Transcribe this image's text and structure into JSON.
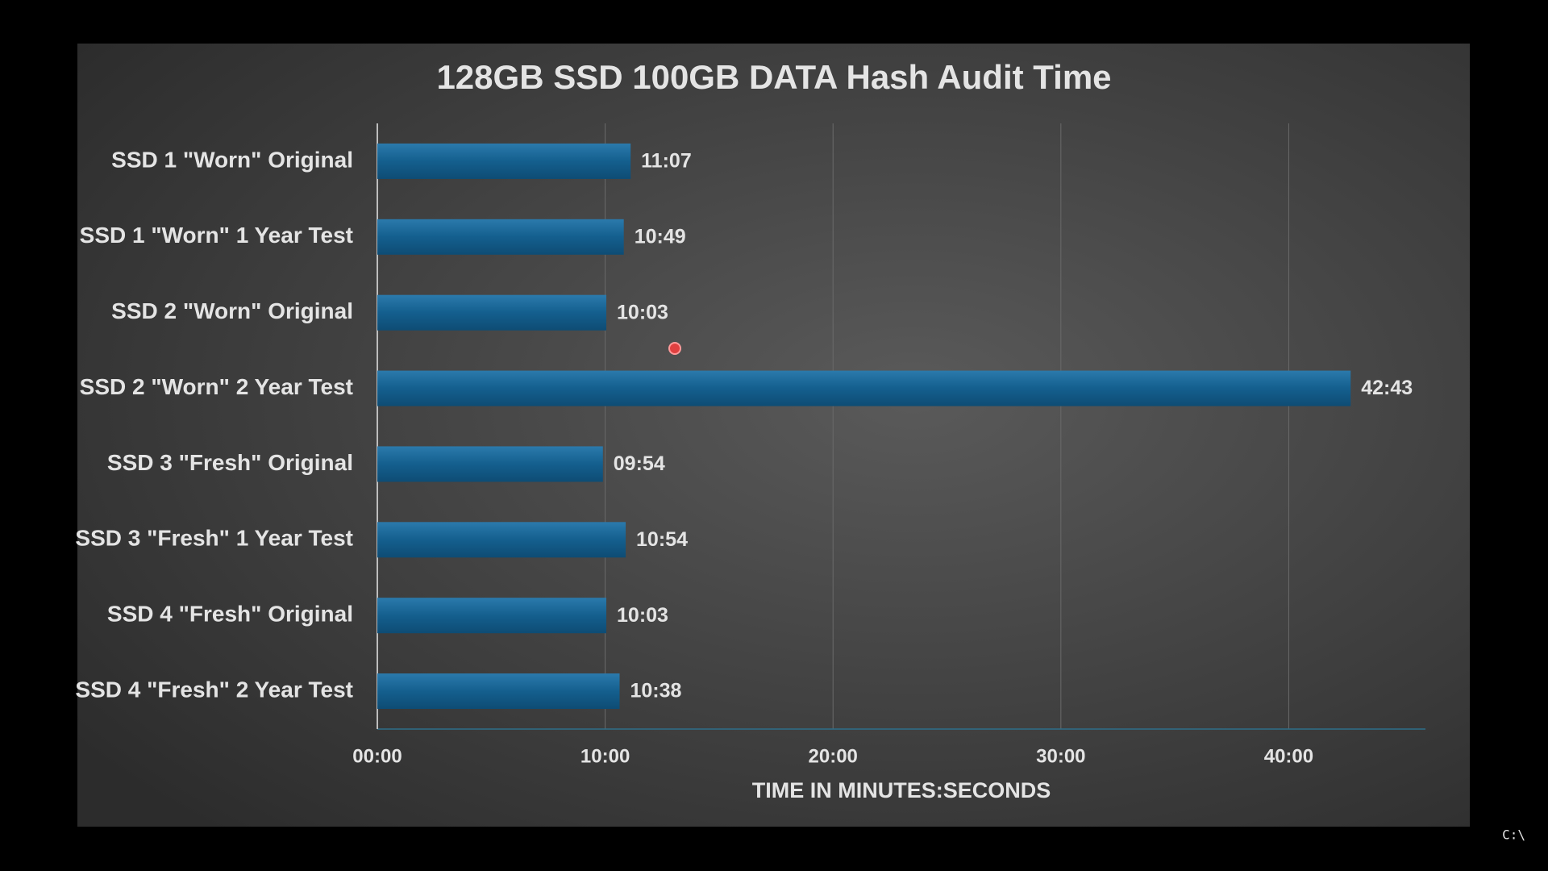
{
  "chart_data": {
    "type": "bar",
    "orientation": "horizontal",
    "title": "128GB SSD 100GB DATA Hash Audit Time",
    "x_label": "TIME IN MINUTES:SECONDS",
    "categories": [
      "SSD 1 \"Worn\" Original",
      "SSD 1 \"Worn\" 1 Year Test",
      "SSD 2 \"Worn\" Original",
      "SSD 2 \"Worn\" 2 Year Test",
      "SSD 3 \"Fresh\" Original",
      "SSD 3 \"Fresh\" 1 Year Test",
      "SSD 4 \"Fresh\" Original",
      "SSD 4 \"Fresh\" 2 Year Test"
    ],
    "values": [
      11.1167,
      10.8167,
      10.05,
      42.7167,
      9.9,
      10.9,
      10.05,
      10.6333
    ],
    "value_labels": [
      "11:07",
      "10:49",
      "10:03",
      "42:43",
      "09:54",
      "10:54",
      "10:03",
      "10:38"
    ],
    "color": "#145f8e",
    "xlim": [
      0,
      46
    ],
    "xticks": [
      {
        "value": 0,
        "label": "00:00"
      },
      {
        "value": 10,
        "label": "10:00"
      },
      {
        "value": 20,
        "label": "20:00"
      },
      {
        "value": 30,
        "label": "30:00"
      },
      {
        "value": 40,
        "label": "40:00"
      }
    ],
    "grid": true
  },
  "overlay": {
    "prompt": "C:\\"
  }
}
